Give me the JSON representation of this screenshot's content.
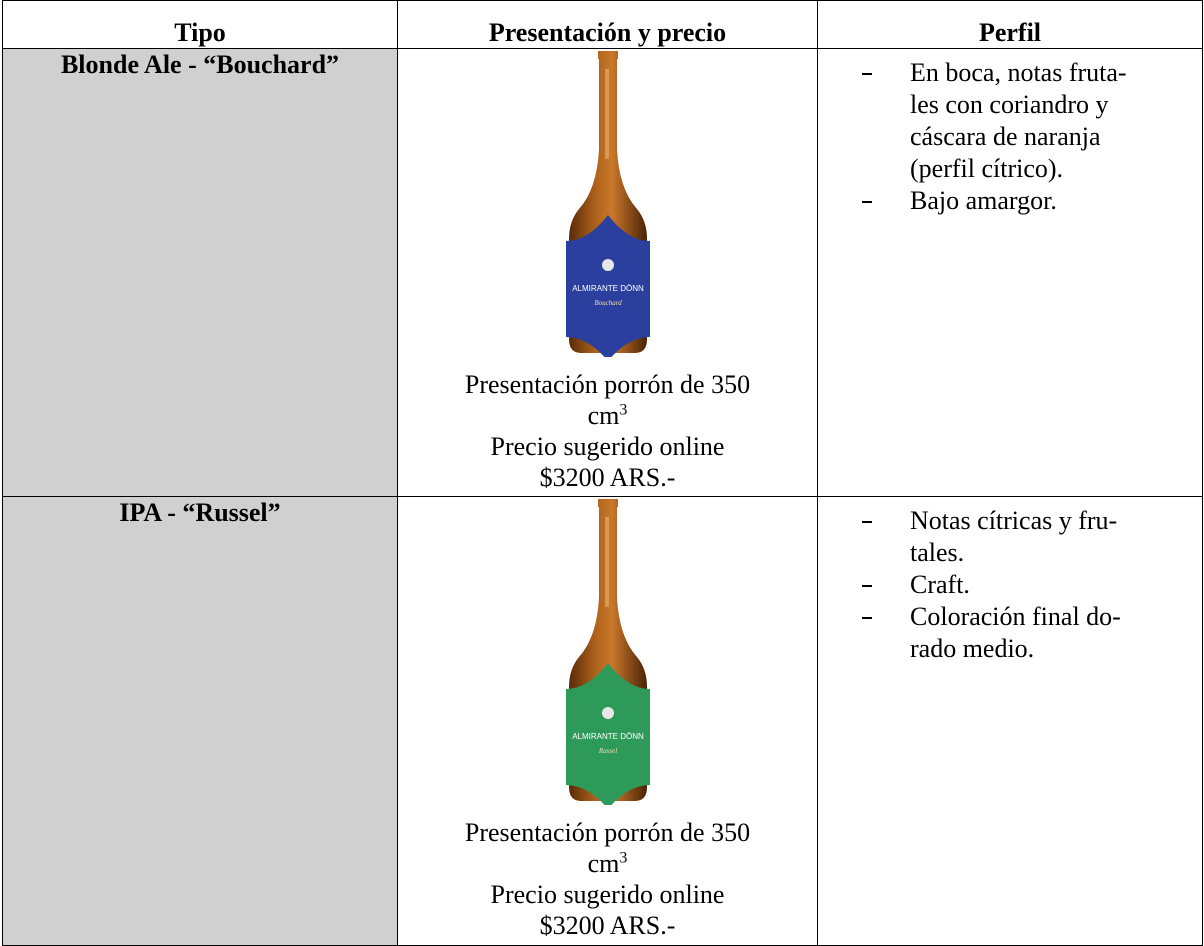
{
  "table": {
    "header": [
      "Tipo",
      "Presentación y precio",
      "Perfil"
    ],
    "rows": [
      {
        "type": "Blonde Ale - “Bouchard”",
        "bottle": {
          "brand": "ALMIRANTE DÖNN",
          "name": "Bouchard",
          "label_color": "#2b3f9e"
        },
        "presentation": {
          "line1": "Presentación porrón de 350",
          "unit": "cm",
          "unit_sup": "3",
          "line3": "Precio sugerido online",
          "price": "$3200 ARS.-"
        },
        "profile": [
          [
            "En boca, notas fruta-",
            "les con coriandro y",
            "cáscara de naranja",
            "(perfil cítrico)."
          ],
          [
            "Bajo amargor."
          ]
        ]
      },
      {
        "type": "IPA - “Russel”",
        "bottle": {
          "brand": "ALMIRANTE DÖNN",
          "name": "Russel",
          "label_color": "#2e9a5a"
        },
        "presentation": {
          "line1": "Presentación porrón de 350",
          "unit": "cm",
          "unit_sup": "3",
          "line3": "Precio sugerido online",
          "price": "$3200 ARS.-"
        },
        "profile": [
          [
            "Notas cítricas y fru-",
            "tales."
          ],
          [
            "Craft."
          ],
          [
            "Coloración final do-",
            "rado medio."
          ]
        ]
      }
    ]
  }
}
